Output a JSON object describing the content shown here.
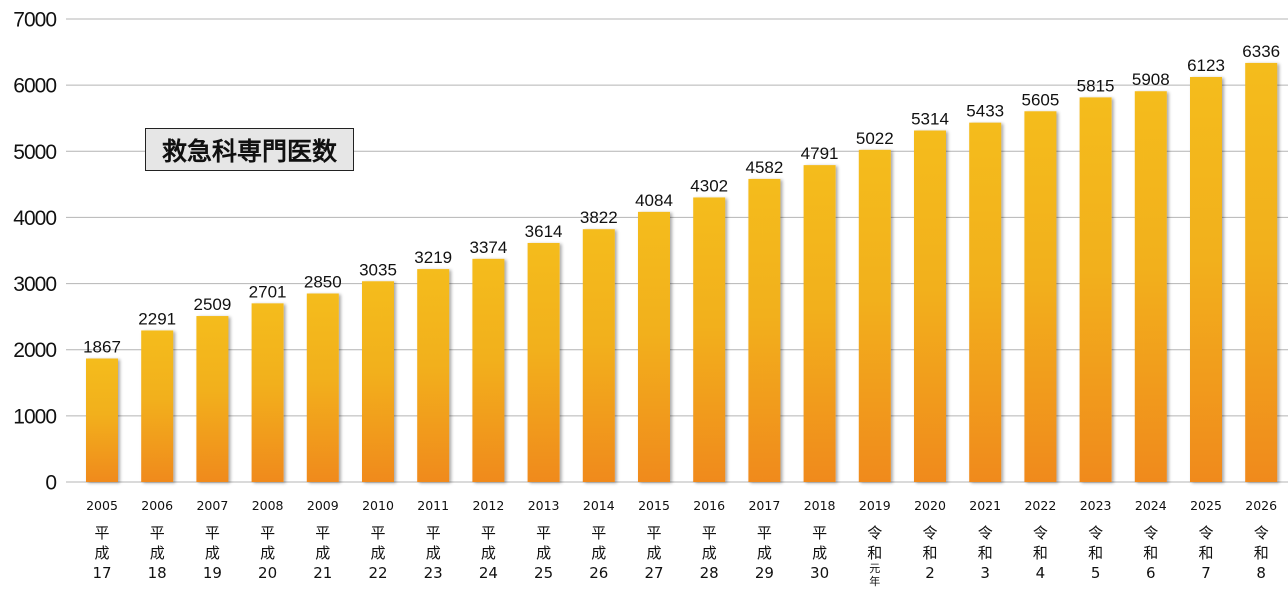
{
  "chart_data": {
    "type": "bar",
    "title": "救急科専門医数",
    "xlabel": "",
    "ylabel": "",
    "ylim": [
      0,
      7000
    ],
    "yticks": [
      0,
      1000,
      2000,
      3000,
      4000,
      5000,
      6000,
      7000
    ],
    "grid": true,
    "legend": "none",
    "categories": [
      "2005",
      "2006",
      "2007",
      "2008",
      "2009",
      "2010",
      "2011",
      "2012",
      "2013",
      "2014",
      "2015",
      "2016",
      "2017",
      "2018",
      "2019",
      "2020",
      "2021",
      "2022",
      "2023",
      "2024",
      "2025",
      "2026"
    ],
    "era_labels": [
      [
        "平",
        "成",
        "17"
      ],
      [
        "平",
        "成",
        "18"
      ],
      [
        "平",
        "成",
        "19"
      ],
      [
        "平",
        "成",
        "20"
      ],
      [
        "平",
        "成",
        "21"
      ],
      [
        "平",
        "成",
        "22"
      ],
      [
        "平",
        "成",
        "23"
      ],
      [
        "平",
        "成",
        "24"
      ],
      [
        "平",
        "成",
        "25"
      ],
      [
        "平",
        "成",
        "26"
      ],
      [
        "平",
        "成",
        "27"
      ],
      [
        "平",
        "成",
        "28"
      ],
      [
        "平",
        "成",
        "29"
      ],
      [
        "平",
        "成",
        "30"
      ],
      [
        "令",
        "和",
        "元",
        "年"
      ],
      [
        "令",
        "和",
        "2"
      ],
      [
        "令",
        "和",
        "3"
      ],
      [
        "令",
        "和",
        "4"
      ],
      [
        "令",
        "和",
        "5"
      ],
      [
        "令",
        "和",
        "6"
      ],
      [
        "令",
        "和",
        "7"
      ],
      [
        "令",
        "和",
        "8"
      ]
    ],
    "series": [
      {
        "name": "救急科専門医数",
        "values": [
          1867,
          2291,
          2509,
          2701,
          2850,
          3035,
          3219,
          3374,
          3614,
          3822,
          4084,
          4302,
          4582,
          4791,
          5022,
          5314,
          5433,
          5605,
          5815,
          5908,
          6123,
          6336
        ]
      }
    ],
    "colors": {
      "bar_top": "#F4BC1E",
      "bar_bottom": "#F08A1C",
      "grid": "#b4b4b4",
      "title_box_bg": "#e6e6e6"
    }
  }
}
